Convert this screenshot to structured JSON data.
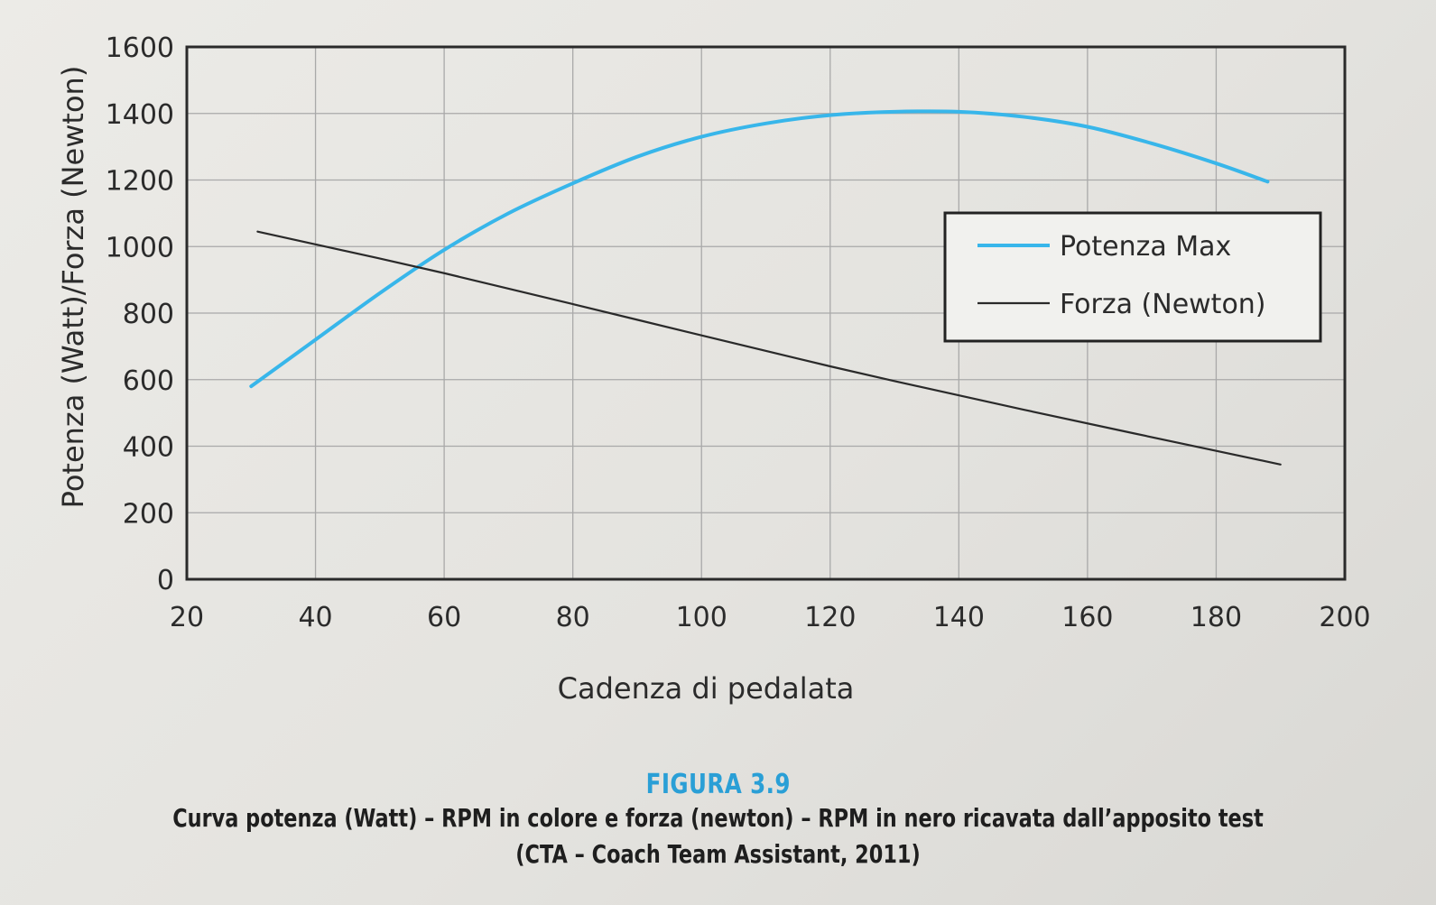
{
  "chart_data": {
    "type": "line",
    "xlabel": "Cadenza di pedalata",
    "ylabel": "Potenza (Watt)/Forza (Newton)",
    "xlim": [
      20,
      200
    ],
    "ylim": [
      0,
      1600
    ],
    "x_ticks": [
      20,
      40,
      60,
      80,
      100,
      120,
      140,
      160,
      180,
      200
    ],
    "y_ticks": [
      0,
      200,
      400,
      600,
      800,
      1000,
      1200,
      1400,
      1600
    ],
    "grid": true,
    "legend_position": "top-right",
    "series": [
      {
        "name": "Potenza Max",
        "color": "#38b6ea",
        "x": [
          30,
          40,
          50,
          60,
          70,
          80,
          90,
          100,
          110,
          120,
          130,
          140,
          150,
          160,
          170,
          180,
          188
        ],
        "y": [
          580,
          720,
          860,
          990,
          1100,
          1190,
          1270,
          1330,
          1370,
          1395,
          1405,
          1405,
          1390,
          1360,
          1310,
          1250,
          1195
        ]
      },
      {
        "name": "Forza (Newton)",
        "color": "#2a2a2a",
        "x": [
          31,
          60,
          90,
          120,
          150,
          190
        ],
        "y": [
          1045,
          920,
          780,
          640,
          510,
          345
        ]
      }
    ]
  },
  "caption": {
    "figure_number": "FIGURA 3.9",
    "line1": "Curva potenza (Watt) – RPM in colore e forza (newton) – RPM in nero ricavata dall’apposito test",
    "line2": "(CTA – Coach Team Assistant, 2011)"
  }
}
